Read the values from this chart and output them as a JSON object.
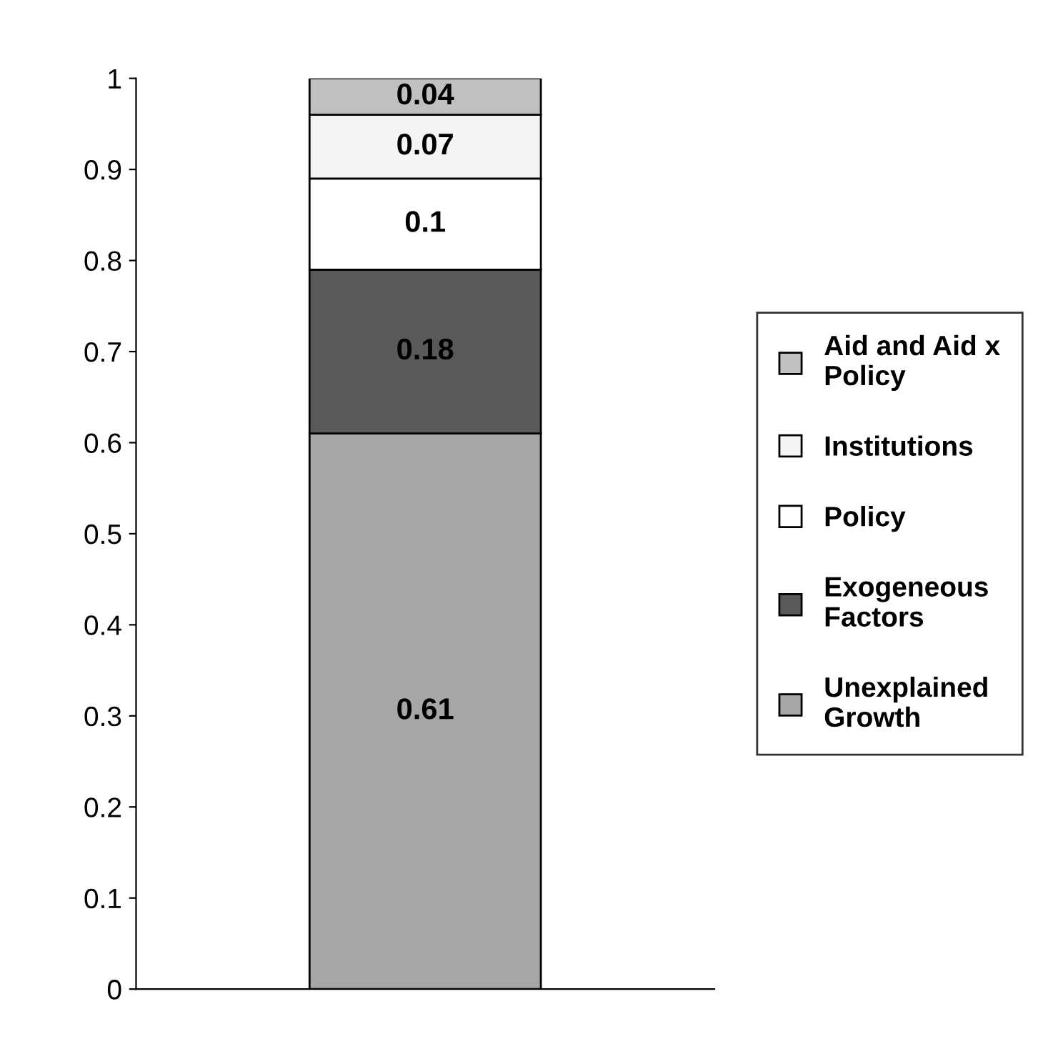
{
  "chart_data": {
    "type": "bar",
    "stacked": true,
    "categories": [
      null
    ],
    "series": [
      {
        "name": "Unexplained Growth",
        "color": "#a6a6a6",
        "values": [
          0.61
        ]
      },
      {
        "name": "Exogeneous Factors",
        "color": "#595959",
        "values": [
          0.18
        ]
      },
      {
        "name": "Policy",
        "color": "#ffffff",
        "values": [
          0.1
        ]
      },
      {
        "name": "Institutions",
        "color": "#f4f4f4",
        "values": [
          0.07
        ]
      },
      {
        "name": "Aid and Aid x Policy",
        "color": "#c0c0c0",
        "values": [
          0.04
        ]
      }
    ],
    "ylim": [
      0,
      1
    ],
    "yticks": [
      0,
      0.1,
      0.2,
      0.3,
      0.4,
      0.5,
      0.6,
      0.7,
      0.8,
      0.9,
      1
    ],
    "data_labels": true,
    "legend": "right",
    "grid": false
  }
}
